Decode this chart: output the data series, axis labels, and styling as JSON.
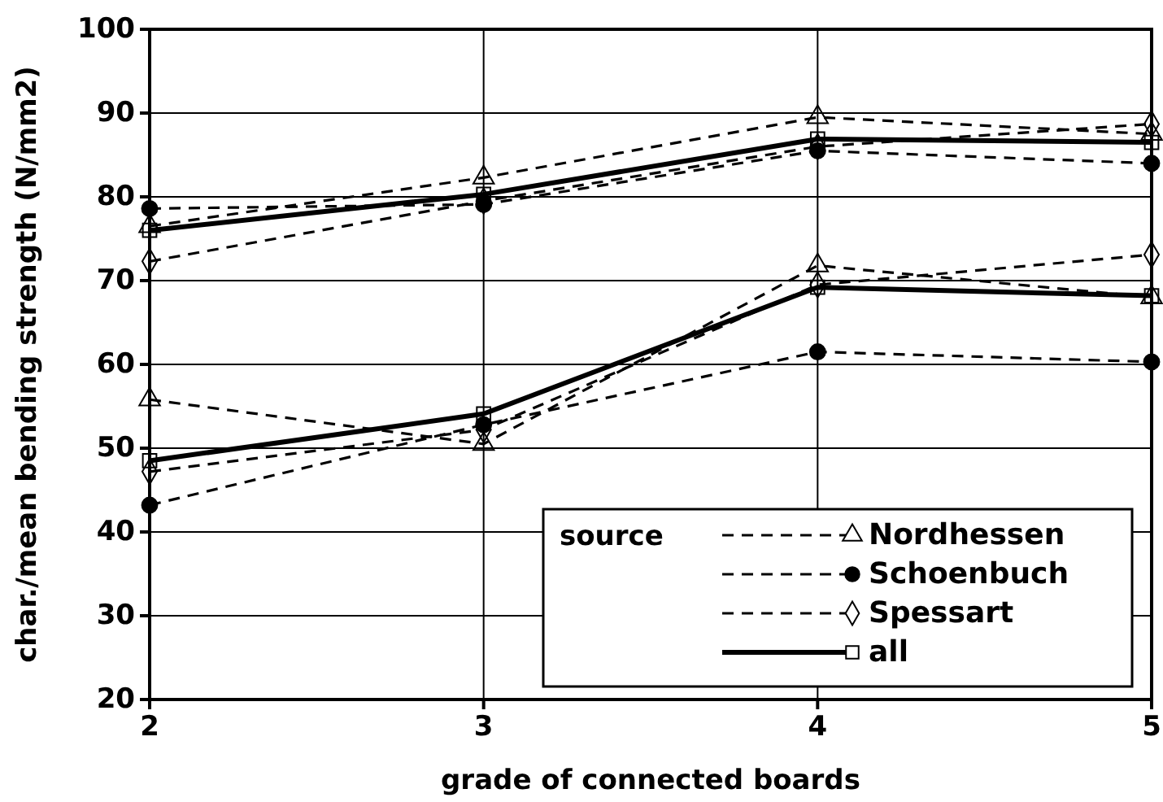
{
  "chart_data": {
    "type": "line",
    "xlabel": "grade of connected boards",
    "ylabel": "char./mean bending strength (N/mm2)",
    "x": [
      2,
      3,
      4,
      5
    ],
    "xlim": [
      2,
      5
    ],
    "xticks": [
      2,
      3,
      4,
      5
    ],
    "ylim": [
      20,
      100
    ],
    "yticks": [
      20,
      30,
      40,
      50,
      60,
      70,
      80,
      90,
      100
    ],
    "grid": true,
    "legend": "bottom right",
    "legend_title": "source",
    "series": [
      {
        "name": "Nordhessen",
        "color": "#000000",
        "marker": "triangle",
        "line_style": "dashed",
        "values": [
          76.5,
          82.3,
          89.5,
          87.5
        ]
      },
      {
        "name": "Schoenbuch",
        "color": "#000000",
        "marker": "circle",
        "line_style": "dashed",
        "values": [
          78.6,
          79.1,
          85.5,
          84.0
        ]
      },
      {
        "name": "Spessart",
        "color": "#000000",
        "marker": "diamond",
        "line_style": "dashed",
        "values": [
          72.3,
          79.5,
          86.0,
          88.7
        ]
      },
      {
        "name": "all",
        "color": "#000000",
        "marker": "square",
        "line_style": "solid",
        "values": [
          76.0,
          80.3,
          86.9,
          86.5
        ]
      },
      {
        "color": "#000000",
        "marker": "triangle",
        "line_style": "dashed",
        "values": [
          55.8,
          50.5,
          71.8,
          68.0
        ]
      },
      {
        "color": "#000000",
        "marker": "circle",
        "line_style": "dashed",
        "values": [
          43.2,
          52.8,
          61.5,
          60.3
        ]
      },
      {
        "color": "#000000",
        "marker": "diamond",
        "line_style": "dashed",
        "values": [
          47.2,
          52.2,
          69.5,
          73.1
        ]
      },
      {
        "color": "#000000",
        "marker": "square",
        "line_style": "solid",
        "values": [
          48.5,
          54.1,
          69.2,
          68.2
        ]
      }
    ]
  }
}
